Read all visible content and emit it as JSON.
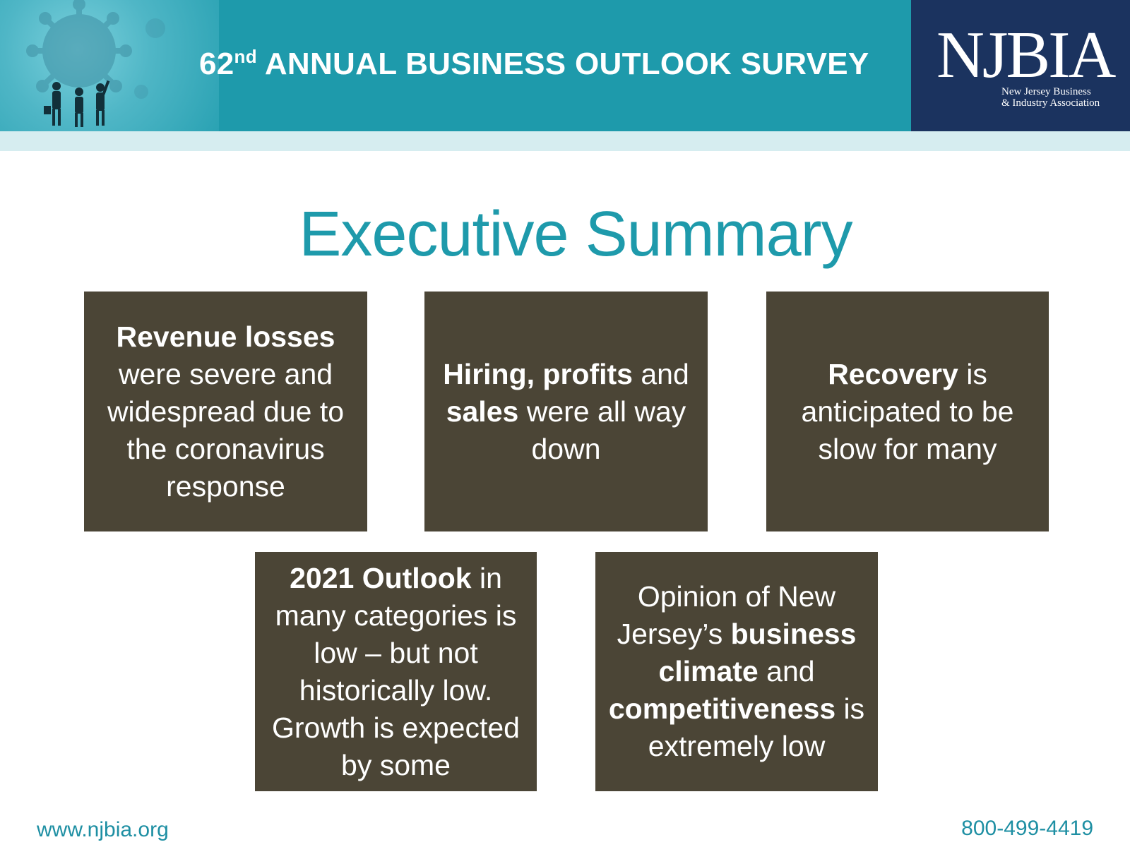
{
  "header": {
    "title_number": "62",
    "title_suffix": "nd",
    "title_rest": " ANNUAL BUSINESS OUTLOOK SURVEY",
    "logo_name": "NJBIA",
    "logo_line1": "New Jersey Business",
    "logo_line2": "& Industry Association"
  },
  "headline": "Executive Summary",
  "cards": [
    {
      "parts": [
        {
          "text": "Revenue losses",
          "bold": true
        },
        {
          "text": " were severe and widespread due to the coronavirus response",
          "bold": false
        }
      ]
    },
    {
      "parts": [
        {
          "text": "Hiring, profits",
          "bold": true
        },
        {
          "text": " and ",
          "bold": false
        },
        {
          "text": "sales",
          "bold": true
        },
        {
          "text": " were all way down",
          "bold": false
        }
      ]
    },
    {
      "parts": [
        {
          "text": "Recovery",
          "bold": true
        },
        {
          "text": " is anticipated to be slow for many",
          "bold": false
        }
      ]
    },
    {
      "parts": [
        {
          "text": "2021 Outlook",
          "bold": true
        },
        {
          "text": " in many categories is low – but not historically low. Growth is expected by some",
          "bold": false
        }
      ]
    },
    {
      "parts": [
        {
          "text": "Opinion of New Jersey’s ",
          "bold": false
        },
        {
          "text": "business climate",
          "bold": true
        },
        {
          "text": " and ",
          "bold": false
        },
        {
          "text": "competitiveness",
          "bold": true
        },
        {
          "text": " is extremely low",
          "bold": false
        }
      ]
    }
  ],
  "footer": {
    "website": "www.njbia.org",
    "phone": "800-499-4419"
  },
  "colors": {
    "teal": "#1e9aab",
    "navy": "#1b335f",
    "card": "#4b4536"
  }
}
